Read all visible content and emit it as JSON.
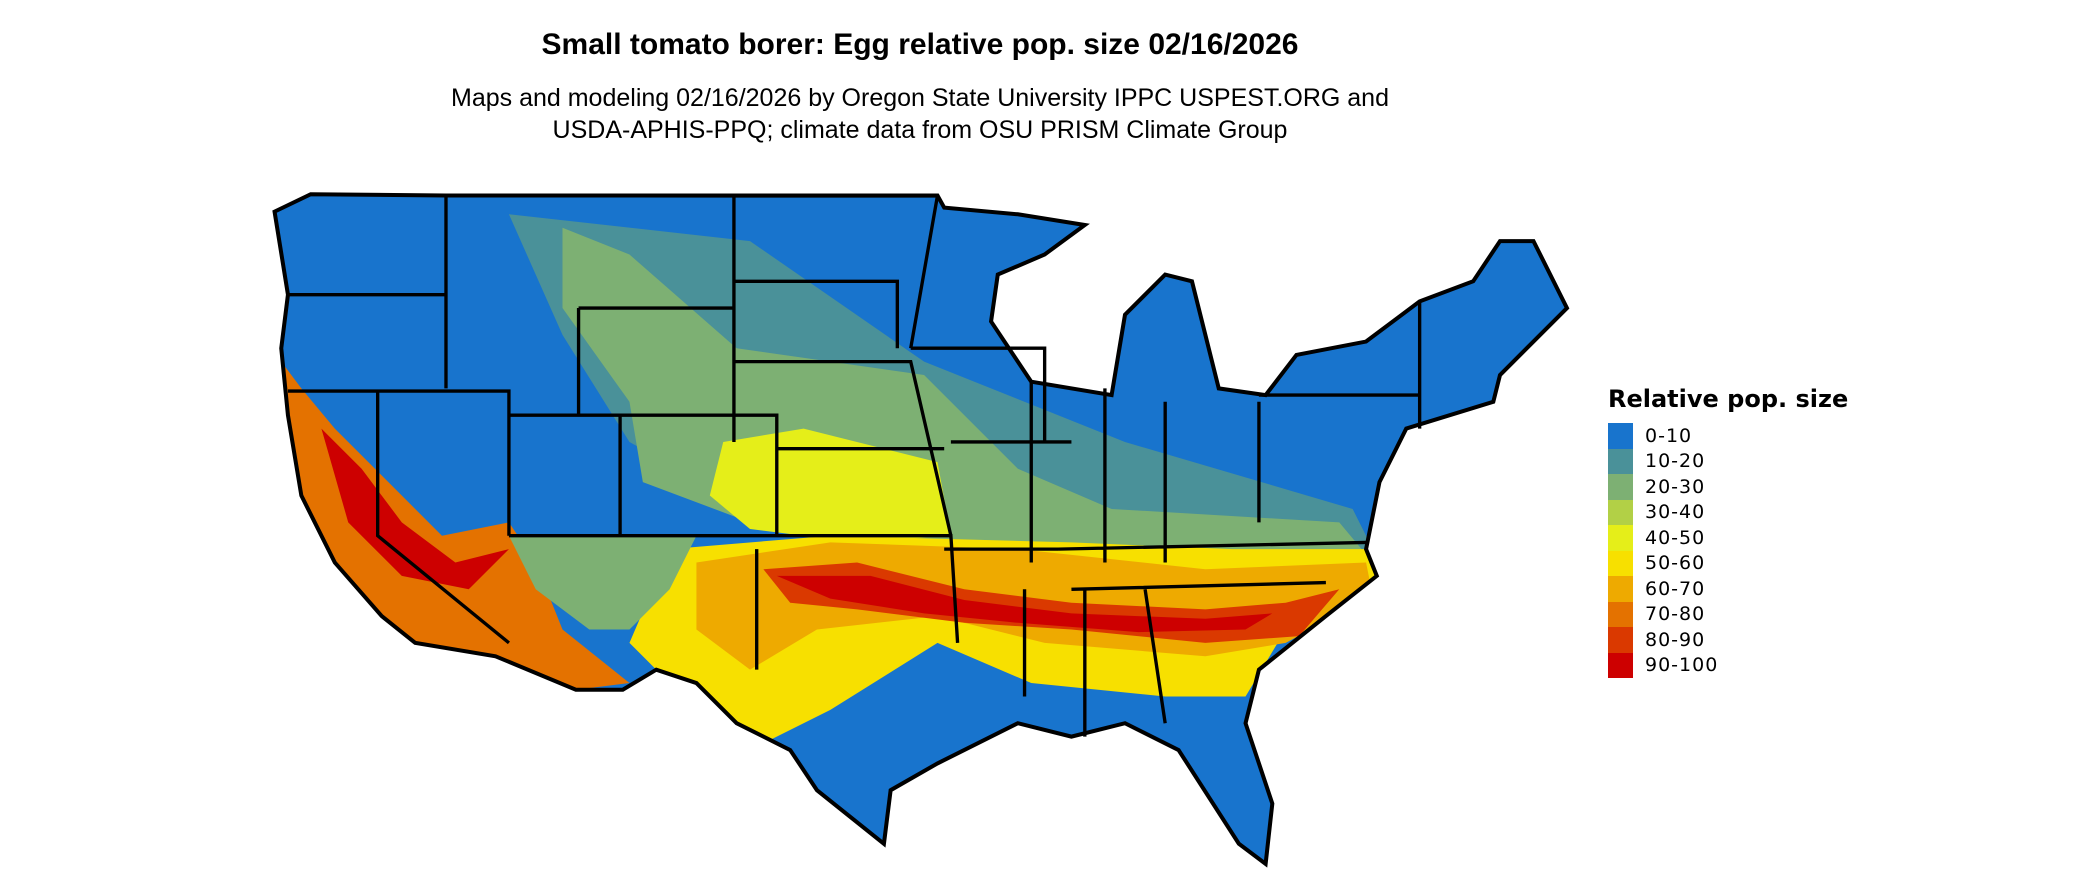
{
  "title": "Small tomato borer: Egg relative pop. size 02/16/2026",
  "subtitle": [
    "Maps and modeling 02/16/2026 by Oregon State University IPPC USPEST.ORG and",
    "USDA-APHIS-PPQ; climate data from OSU PRISM Climate Group"
  ],
  "legend": {
    "title": "Relative pop. size",
    "items": [
      {
        "label": "0-10",
        "color": "#1874CD"
      },
      {
        "label": "10-20",
        "color": "#4A9199"
      },
      {
        "label": "20-30",
        "color": "#7DB073"
      },
      {
        "label": "30-40",
        "color": "#B2D046"
      },
      {
        "label": "40-50",
        "color": "#E5EE19"
      },
      {
        "label": "50-60",
        "color": "#F7E000"
      },
      {
        "label": "60-70",
        "color": "#EEAA00"
      },
      {
        "label": "70-80",
        "color": "#E47200"
      },
      {
        "label": "80-90",
        "color": "#DA3900"
      },
      {
        "label": "90-100",
        "color": "#CD0000"
      }
    ]
  }
}
